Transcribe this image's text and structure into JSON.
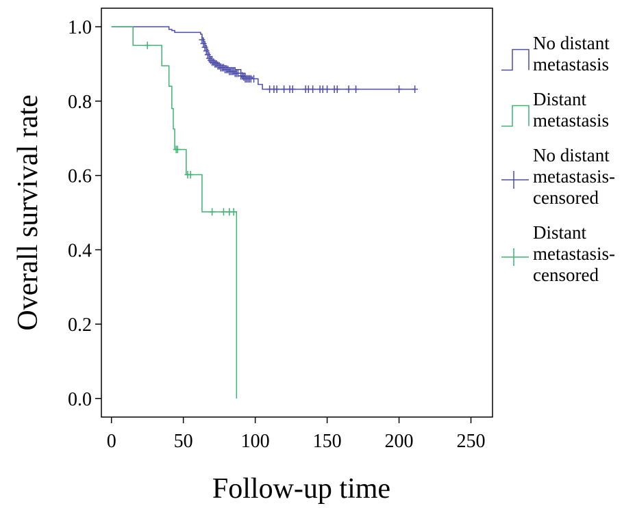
{
  "chart_data": {
    "type": "line",
    "subtype": "kaplan-meier",
    "title": "",
    "xlabel": "Follow-up time",
    "ylabel": "Overall survival rate",
    "xlim": [
      -7,
      265
    ],
    "ylim": [
      -0.05,
      1.05
    ],
    "x_ticks": [
      0,
      50,
      100,
      150,
      200,
      250
    ],
    "x_tick_labels": [
      "0",
      "50",
      "100",
      "150",
      "200",
      "250"
    ],
    "y_ticks": [
      0.0,
      0.2,
      0.4,
      0.6,
      0.8,
      1.0
    ],
    "y_tick_labels": [
      "0.0",
      "0.2",
      "0.4",
      "0.6",
      "0.8",
      "1.0"
    ],
    "grid": false,
    "legend_position": "right",
    "series": [
      {
        "name": "No distant metastasis",
        "color": "#4a4aa8",
        "steps": [
          [
            0,
            1.0
          ],
          [
            40,
            0.993
          ],
          [
            42,
            0.99
          ],
          [
            44,
            0.985
          ],
          [
            62,
            0.98
          ],
          [
            63,
            0.97
          ],
          [
            64,
            0.96
          ],
          [
            65,
            0.95
          ],
          [
            66,
            0.94
          ],
          [
            67,
            0.93
          ],
          [
            68,
            0.92
          ],
          [
            70,
            0.91
          ],
          [
            72,
            0.905
          ],
          [
            74,
            0.9
          ],
          [
            76,
            0.895
          ],
          [
            80,
            0.89
          ],
          [
            86,
            0.885
          ],
          [
            90,
            0.875
          ],
          [
            93,
            0.865
          ],
          [
            98,
            0.86
          ],
          [
            102,
            0.845
          ],
          [
            105,
            0.832
          ],
          [
            211,
            0.832
          ]
        ],
        "censored": [
          [
            63,
            0.965
          ],
          [
            64,
            0.955
          ],
          [
            65,
            0.945
          ],
          [
            66,
            0.935
          ],
          [
            67,
            0.925
          ],
          [
            68,
            0.915
          ],
          [
            69,
            0.91
          ],
          [
            70,
            0.905
          ],
          [
            71,
            0.905
          ],
          [
            72,
            0.9
          ],
          [
            73,
            0.9
          ],
          [
            74,
            0.895
          ],
          [
            75,
            0.895
          ],
          [
            76,
            0.89
          ],
          [
            77,
            0.89
          ],
          [
            78,
            0.89
          ],
          [
            79,
            0.885
          ],
          [
            80,
            0.885
          ],
          [
            81,
            0.885
          ],
          [
            82,
            0.88
          ],
          [
            83,
            0.88
          ],
          [
            84,
            0.88
          ],
          [
            85,
            0.88
          ],
          [
            86,
            0.875
          ],
          [
            87,
            0.875
          ],
          [
            88,
            0.875
          ],
          [
            90,
            0.868
          ],
          [
            91,
            0.868
          ],
          [
            92,
            0.865
          ],
          [
            93,
            0.86
          ],
          [
            94,
            0.86
          ],
          [
            95,
            0.86
          ],
          [
            96,
            0.86
          ],
          [
            97,
            0.86
          ],
          [
            99,
            0.86
          ],
          [
            110,
            0.832
          ],
          [
            113,
            0.832
          ],
          [
            115,
            0.832
          ],
          [
            120,
            0.832
          ],
          [
            124,
            0.832
          ],
          [
            126,
            0.832
          ],
          [
            135,
            0.832
          ],
          [
            137,
            0.832
          ],
          [
            140,
            0.832
          ],
          [
            145,
            0.832
          ],
          [
            147,
            0.832
          ],
          [
            150,
            0.832
          ],
          [
            155,
            0.832
          ],
          [
            157,
            0.832
          ],
          [
            165,
            0.832
          ],
          [
            170,
            0.832
          ],
          [
            200,
            0.832
          ],
          [
            211,
            0.832
          ]
        ]
      },
      {
        "name": "Distant metastasis",
        "color": "#3cb371",
        "steps": [
          [
            0,
            1.0
          ],
          [
            15,
            0.95
          ],
          [
            35,
            0.895
          ],
          [
            40,
            0.84
          ],
          [
            42,
            0.78
          ],
          [
            43,
            0.725
          ],
          [
            44,
            0.67
          ],
          [
            52,
            0.602
          ],
          [
            63,
            0.502
          ],
          [
            87,
            0.0
          ]
        ],
        "censored": [
          [
            25,
            0.95
          ],
          [
            45,
            0.67
          ],
          [
            46,
            0.67
          ],
          [
            53,
            0.602
          ],
          [
            55,
            0.602
          ],
          [
            70,
            0.502
          ],
          [
            78,
            0.502
          ],
          [
            82,
            0.502
          ],
          [
            85,
            0.502
          ]
        ]
      }
    ],
    "legend": [
      {
        "label": "No distant metastasis",
        "kind": "line",
        "color": "#4a4aa8"
      },
      {
        "label": "Distant metastasis",
        "kind": "line",
        "color": "#3cb371"
      },
      {
        "label": "No distant metastasis-censored",
        "kind": "censor",
        "color": "#4a4aa8"
      },
      {
        "label": "Distant metastasis-censored",
        "kind": "censor",
        "color": "#3cb371"
      }
    ]
  }
}
